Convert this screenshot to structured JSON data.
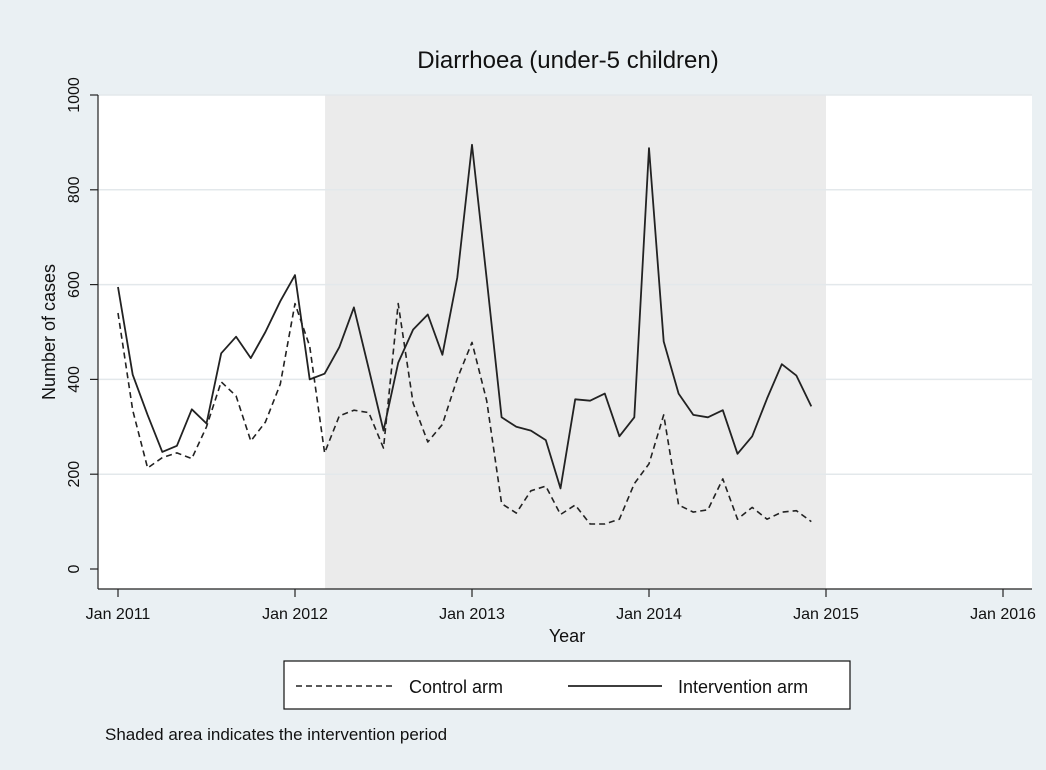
{
  "chart_data": {
    "type": "line",
    "title": "Diarrhoea (under-5 children)",
    "xlabel": "Year",
    "ylabel": "Number of cases",
    "xlim": [
      2011,
      2016.2
    ],
    "ylim": [
      0,
      1000
    ],
    "x_ticks": [
      {
        "value": 2011,
        "label": "Jan 2011"
      },
      {
        "value": 2012,
        "label": "Jan 2012"
      },
      {
        "value": 2013,
        "label": "Jan 2013"
      },
      {
        "value": 2014,
        "label": "Jan 2014"
      },
      {
        "value": 2015,
        "label": "Jan 2015"
      },
      {
        "value": 2016,
        "label": "Jan 2016"
      }
    ],
    "y_ticks": [
      {
        "value": 0,
        "label": "0"
      },
      {
        "value": 200,
        "label": "200"
      },
      {
        "value": 400,
        "label": "400"
      },
      {
        "value": 600,
        "label": "600"
      },
      {
        "value": 800,
        "label": "800"
      },
      {
        "value": 1000,
        "label": "1000"
      }
    ],
    "grid": true,
    "shaded_region": {
      "x_start": 2012.17,
      "x_end": 2015.0
    },
    "x": [
      2011.0,
      2011.083,
      2011.167,
      2011.25,
      2011.333,
      2011.417,
      2011.5,
      2011.583,
      2011.667,
      2011.75,
      2011.833,
      2011.917,
      2012.0,
      2012.083,
      2012.167,
      2012.25,
      2012.333,
      2012.417,
      2012.5,
      2012.583,
      2012.667,
      2012.75,
      2012.833,
      2012.917,
      2013.0,
      2013.083,
      2013.167,
      2013.25,
      2013.333,
      2013.417,
      2013.5,
      2013.583,
      2013.667,
      2013.75,
      2013.833,
      2013.917,
      2014.0,
      2014.083,
      2014.167,
      2014.25,
      2014.333,
      2014.417,
      2014.5,
      2014.583,
      2014.667,
      2014.75,
      2014.833,
      2014.917
    ],
    "series": [
      {
        "name": "Control arm",
        "style": "dashed",
        "values": [
          540,
          335,
          213,
          235,
          245,
          233,
          300,
          395,
          365,
          270,
          310,
          390,
          560,
          470,
          245,
          323,
          335,
          330,
          255,
          560,
          350,
          268,
          305,
          402,
          478,
          355,
          138,
          118,
          165,
          175,
          115,
          135,
          95,
          95,
          105,
          180,
          222,
          325,
          135,
          120,
          125,
          190,
          105,
          130,
          105,
          120,
          123,
          100
        ]
      },
      {
        "name": "Intervention arm",
        "style": "solid",
        "values": [
          595,
          410,
          325,
          247,
          260,
          337,
          307,
          455,
          490,
          445,
          500,
          565,
          620,
          400,
          412,
          468,
          552,
          422,
          292,
          435,
          505,
          537,
          452,
          615,
          895,
          612,
          320,
          300,
          292,
          272,
          170,
          358,
          355,
          370,
          280,
          320,
          888,
          480,
          370,
          325,
          320,
          335,
          243,
          280,
          360,
          432,
          408,
          343
        ]
      }
    ],
    "legend_position": "bottom",
    "note": "Shaded area indicates the intervention period"
  },
  "colors": {
    "background": "#eaf0f3",
    "plot_background": "#ffffff",
    "shaded": "#ebebeb",
    "line": "#222222",
    "grid": "#e3e8eb"
  }
}
